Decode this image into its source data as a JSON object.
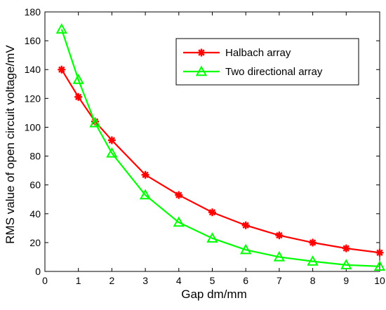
{
  "chart_data": {
    "type": "line",
    "title": "",
    "xlabel": "Gap dm/mm",
    "ylabel": "RMS value of open circuit voltage/mV",
    "xlim": [
      0,
      10
    ],
    "ylim": [
      0,
      180
    ],
    "xticks": [
      0,
      1,
      2,
      3,
      4,
      5,
      6,
      7,
      8,
      9,
      10
    ],
    "yticks": [
      0,
      20,
      40,
      60,
      80,
      100,
      120,
      140,
      160,
      180
    ],
    "grid": false,
    "legend_position": "top-right",
    "series": [
      {
        "name": "Halbach array",
        "color": "#ff0000",
        "marker": "asterisk",
        "x": [
          0.5,
          1,
          1.5,
          2,
          3,
          4,
          5,
          6,
          7,
          8,
          9,
          10
        ],
        "y": [
          140,
          121,
          104,
          91,
          67,
          53,
          41,
          32,
          25,
          20,
          16,
          13
        ]
      },
      {
        "name": "Two directional array",
        "color": "#00ff00",
        "marker": "triangle",
        "x": [
          0.5,
          1,
          1.5,
          2,
          3,
          4,
          5,
          6,
          7,
          8,
          9,
          10
        ],
        "y": [
          168,
          133,
          103,
          82,
          53,
          34,
          23,
          15,
          10,
          7,
          4.5,
          3.5
        ]
      }
    ]
  }
}
